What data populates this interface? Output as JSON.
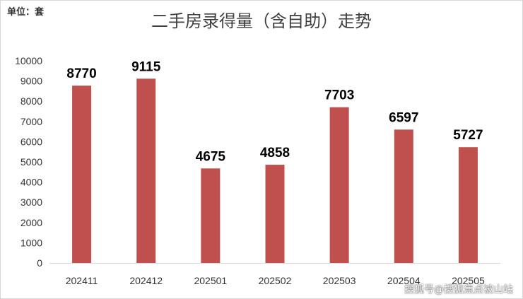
{
  "unit_label": "单位：套",
  "watermark": "搜狐号@搜狐焦点被山站",
  "colors": {
    "bar": "#c0504d",
    "axis": "#d9d9d9",
    "text": "#333333"
  },
  "chart_data": {
    "type": "bar",
    "title": "二手房录得量（含自助）走势",
    "categories": [
      "202411",
      "202412",
      "202501",
      "202502",
      "202503",
      "202504",
      "202505"
    ],
    "values": [
      8770,
      9115,
      4675,
      4858,
      7703,
      6597,
      5727
    ],
    "yticks": [
      "0",
      "1000",
      "2000",
      "3000",
      "4000",
      "5000",
      "6000",
      "7000",
      "8000",
      "9000",
      "10000"
    ],
    "ylim": [
      0,
      10000
    ],
    "xlabel": "",
    "ylabel": "",
    "grid": false,
    "legend": "none"
  }
}
